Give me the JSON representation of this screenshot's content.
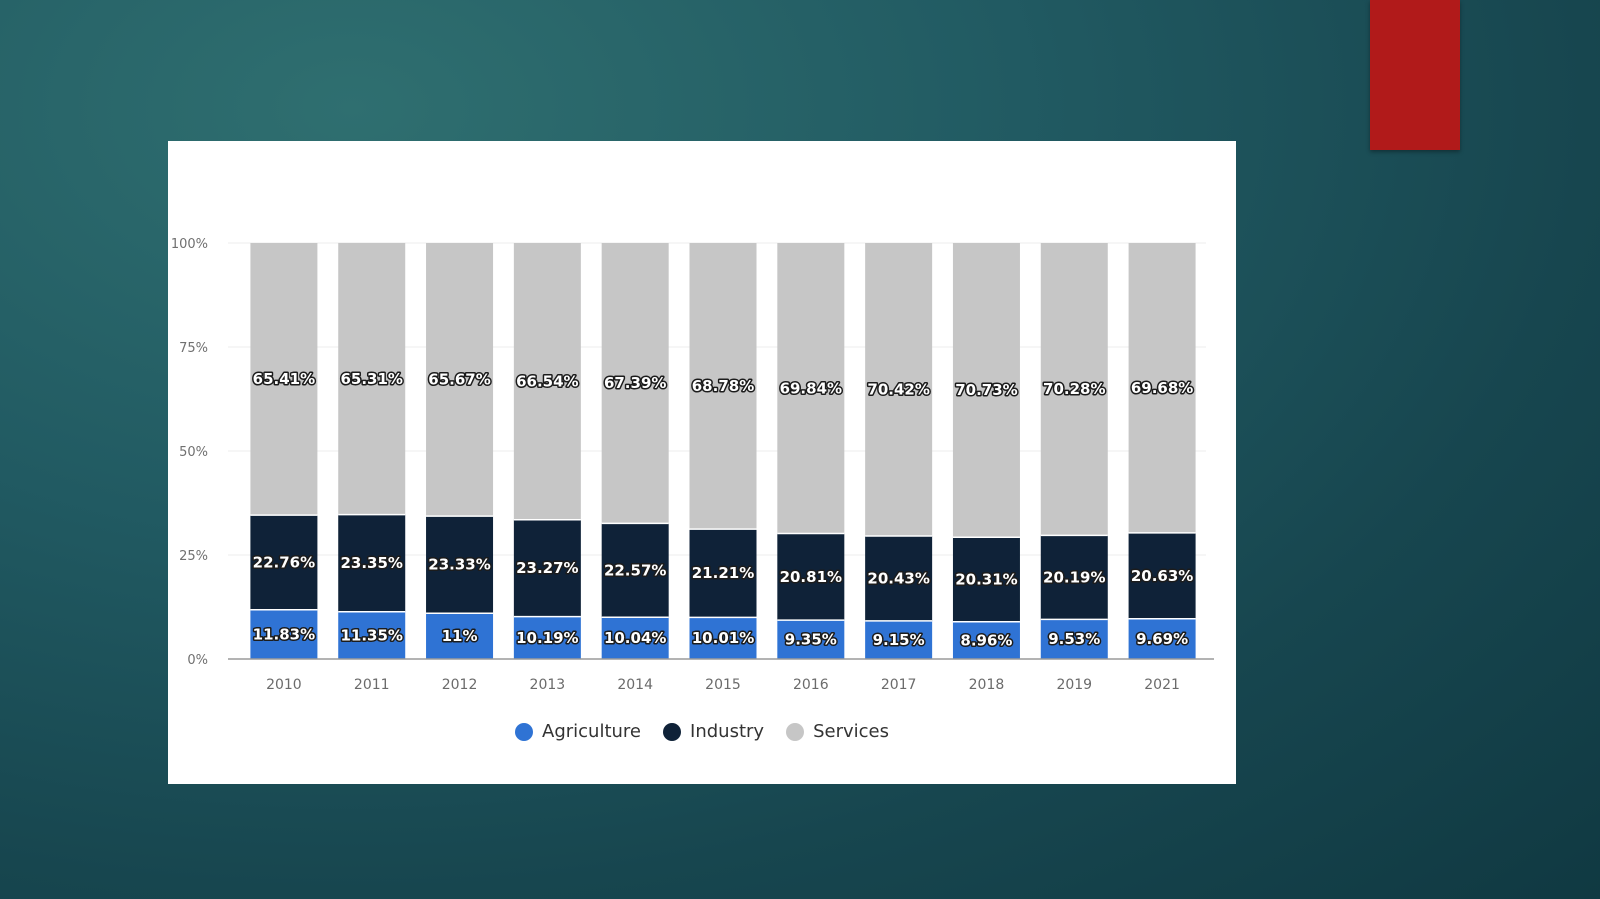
{
  "colors": {
    "agriculture": "#2f73d4",
    "industry": "#0f2238",
    "services": "#c6c6c6",
    "accent_tab": "#b11a1a"
  },
  "chart_data": {
    "type": "bar",
    "stacked": true,
    "categories": [
      "2010",
      "2011",
      "2012",
      "2013",
      "2014",
      "2015",
      "2016",
      "2017",
      "2018",
      "2019",
      "2021"
    ],
    "series": [
      {
        "name": "Agriculture",
        "color": "#2f73d4",
        "values": [
          11.83,
          11.35,
          11,
          10.19,
          10.04,
          10.01,
          9.35,
          9.15,
          8.96,
          9.53,
          9.69
        ],
        "labels": [
          "11.83%",
          "11.35%",
          "11%",
          "10.19%",
          "10.04%",
          "10.01%",
          "9.35%",
          "9.15%",
          "8.96%",
          "9.53%",
          "9.69%"
        ]
      },
      {
        "name": "Industry",
        "color": "#0f2238",
        "values": [
          22.76,
          23.35,
          23.33,
          23.27,
          22.57,
          21.21,
          20.81,
          20.43,
          20.31,
          20.19,
          20.63
        ],
        "labels": [
          "22.76%",
          "23.35%",
          "23.33%",
          "23.27%",
          "22.57%",
          "21.21%",
          "20.81%",
          "20.43%",
          "20.31%",
          "20.19%",
          "20.63%"
        ]
      },
      {
        "name": "Services",
        "color": "#c6c6c6",
        "values": [
          65.41,
          65.31,
          65.67,
          66.54,
          67.39,
          68.78,
          69.84,
          70.42,
          70.73,
          70.28,
          69.68
        ],
        "labels": [
          "65.41%",
          "65.31%",
          "65.67%",
          "66.54%",
          "67.39%",
          "68.78%",
          "69.84%",
          "70.42%",
          "70.73%",
          "70.28%",
          "69.68%"
        ]
      }
    ],
    "yticks": [
      "0%",
      "25%",
      "50%",
      "75%",
      "100%"
    ],
    "ylim": [
      0,
      100
    ],
    "grid": true,
    "legend_position": "bottom"
  }
}
